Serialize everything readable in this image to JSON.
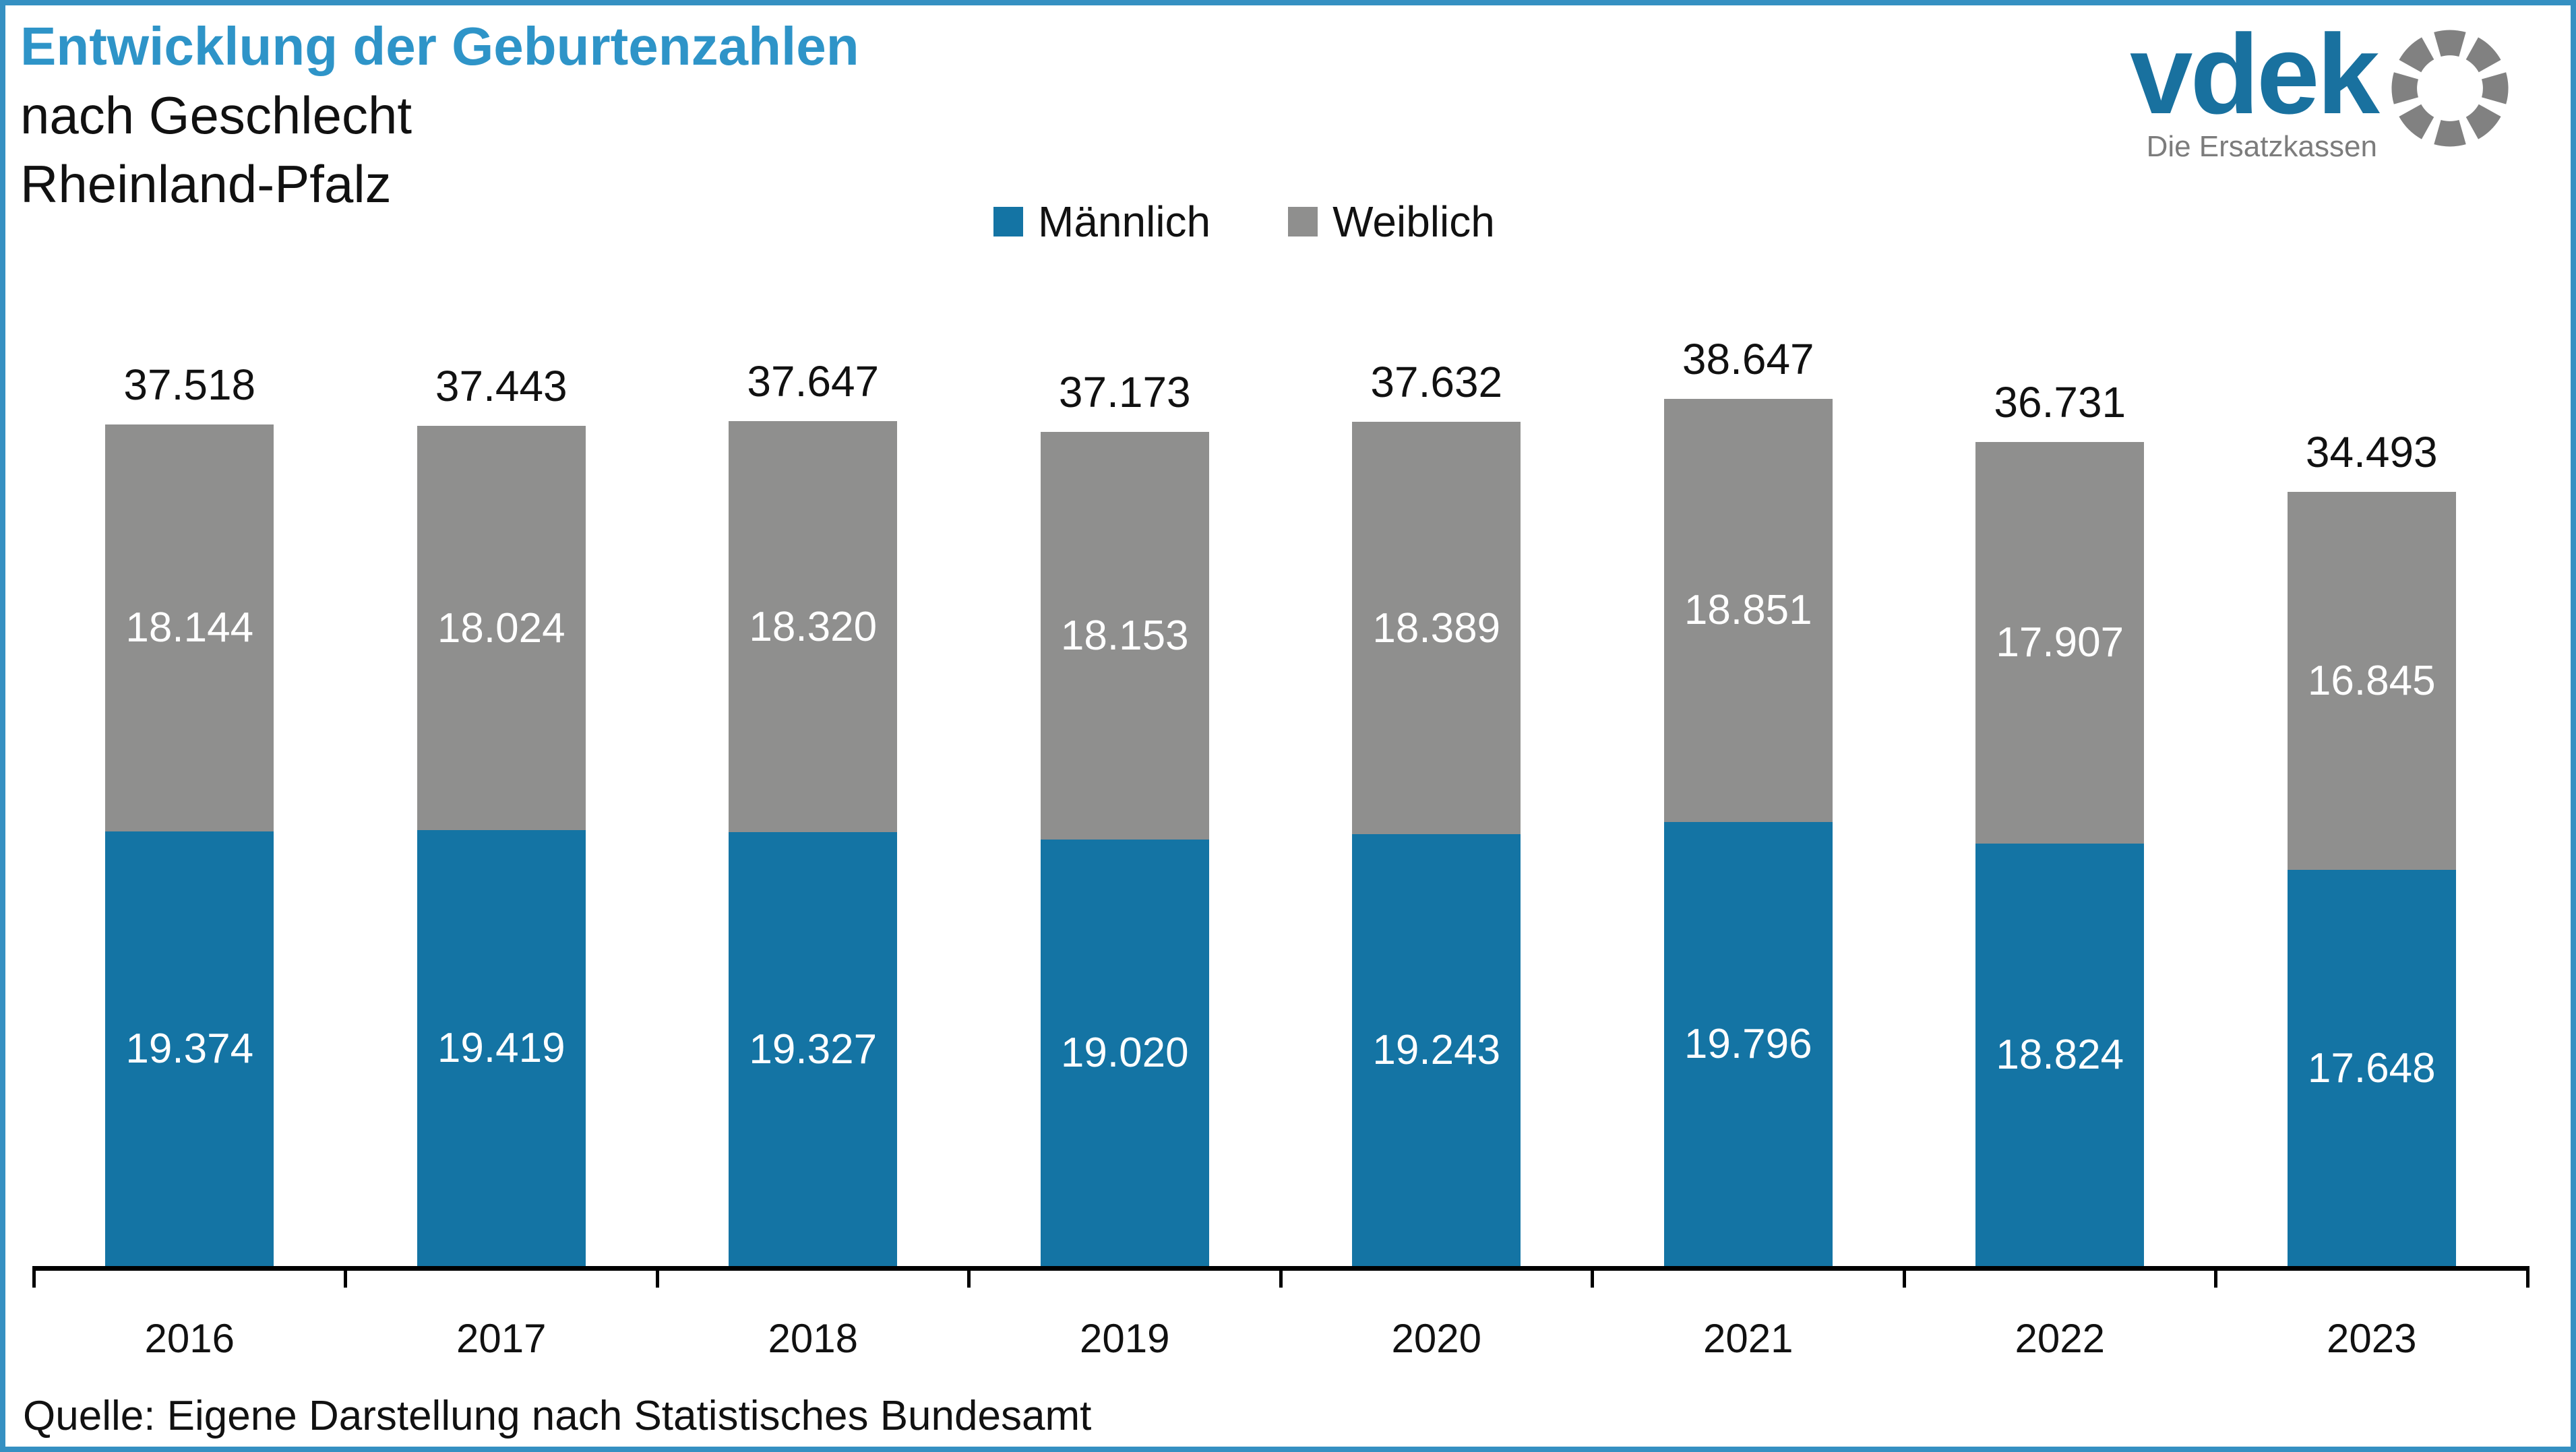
{
  "title": {
    "line1": "Entwicklung der Geburtenzahlen",
    "line2": "nach Geschlecht",
    "line3": "Rheinland-Pfalz"
  },
  "logo": {
    "brand": "vdek",
    "tagline": "Die Ersatzkassen"
  },
  "legend": {
    "items": [
      {
        "label": "Männlich",
        "color": "#1474A4"
      },
      {
        "label": "Weiblich",
        "color": "#8F8F8E"
      }
    ]
  },
  "source": "Quelle: Eigene Darstellung nach Statistisches Bundesamt",
  "colors": {
    "male": "#1474A4",
    "female": "#8F8F8E",
    "title_accent": "#2E94C8",
    "frame_border": "#3590C2",
    "logo_blue": "#19719F",
    "logo_gray": "#818181",
    "axis": "#000000",
    "value_label_on_bar": "#FFFFFF",
    "text": "#111111"
  },
  "chart_data": {
    "type": "bar",
    "stacked": true,
    "title": "Entwicklung der Geburtenzahlen nach Geschlecht Rheinland-Pfalz",
    "xlabel": "",
    "ylabel": "",
    "grid": false,
    "y_axis_visible": false,
    "legend_position": "top",
    "ylim": [
      0,
      38647
    ],
    "categories": [
      "2016",
      "2017",
      "2018",
      "2019",
      "2020",
      "2021",
      "2022",
      "2023"
    ],
    "series": [
      {
        "name": "Männlich",
        "key": "maennlich",
        "color": "#1474A4",
        "values": [
          19374,
          19419,
          19327,
          19020,
          19243,
          19796,
          18824,
          17648
        ],
        "labels": [
          "19.374",
          "19.419",
          "19.327",
          "19.020",
          "19.243",
          "19.796",
          "18.824",
          "17.648"
        ]
      },
      {
        "name": "Weiblich",
        "key": "weiblich",
        "color": "#8F8F8E",
        "values": [
          18144,
          18024,
          18320,
          18153,
          18389,
          18851,
          17907,
          16845
        ],
        "labels": [
          "18.144",
          "18.024",
          "18.320",
          "18.153",
          "18.389",
          "18.851",
          "17.907",
          "16.845"
        ]
      }
    ],
    "totals": [
      37518,
      37443,
      37647,
      37173,
      37632,
      38647,
      36731,
      34493
    ],
    "total_labels": [
      "37.518",
      "37.443",
      "37.647",
      "37.173",
      "37.632",
      "38.647",
      "36.731",
      "34.493"
    ]
  }
}
